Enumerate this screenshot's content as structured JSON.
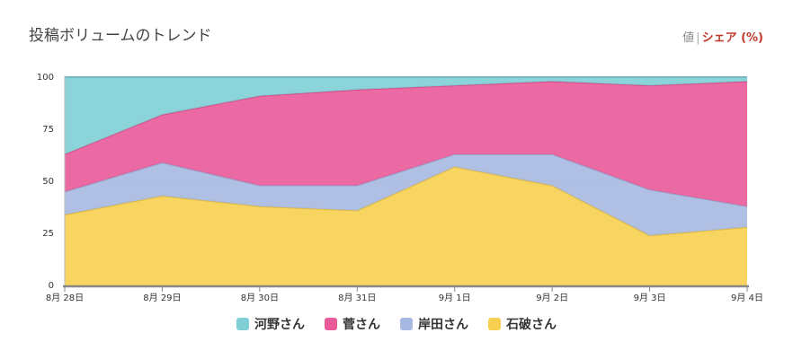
{
  "header": {
    "title": "投稿ボリュームのトレンド",
    "toggle_value": "値",
    "toggle_sep": "|",
    "toggle_share": "シェア (%)"
  },
  "chart_data": {
    "type": "area",
    "stacked": true,
    "categories": [
      "8月 28日",
      "8月 29日",
      "8月 30日",
      "8月 31日",
      "9月 1日",
      "9月 2日",
      "9月 3日",
      "9月 4日"
    ],
    "ylim": [
      0,
      100
    ],
    "yticks": [
      0,
      25,
      50,
      75,
      100
    ],
    "grid": true,
    "legend": "bottom",
    "series": [
      {
        "name": "石破さん",
        "color": "#f7cf4f",
        "values": [
          34,
          43,
          38,
          36,
          57,
          48,
          24,
          28
        ]
      },
      {
        "name": "岸田さん",
        "color": "#a7b9e2",
        "values": [
          11,
          16,
          10,
          12,
          6,
          15,
          22,
          10
        ]
      },
      {
        "name": "菅さん",
        "color": "#ea5a9a",
        "values": [
          18,
          23,
          43,
          46,
          33,
          35,
          50,
          60
        ]
      },
      {
        "name": "河野さん",
        "color": "#7ecfd6",
        "values": [
          37,
          18,
          9,
          6,
          4,
          2,
          4,
          2
        ]
      }
    ],
    "legend_order": [
      "河野さん",
      "菅さん",
      "岸田さん",
      "石破さん"
    ]
  }
}
